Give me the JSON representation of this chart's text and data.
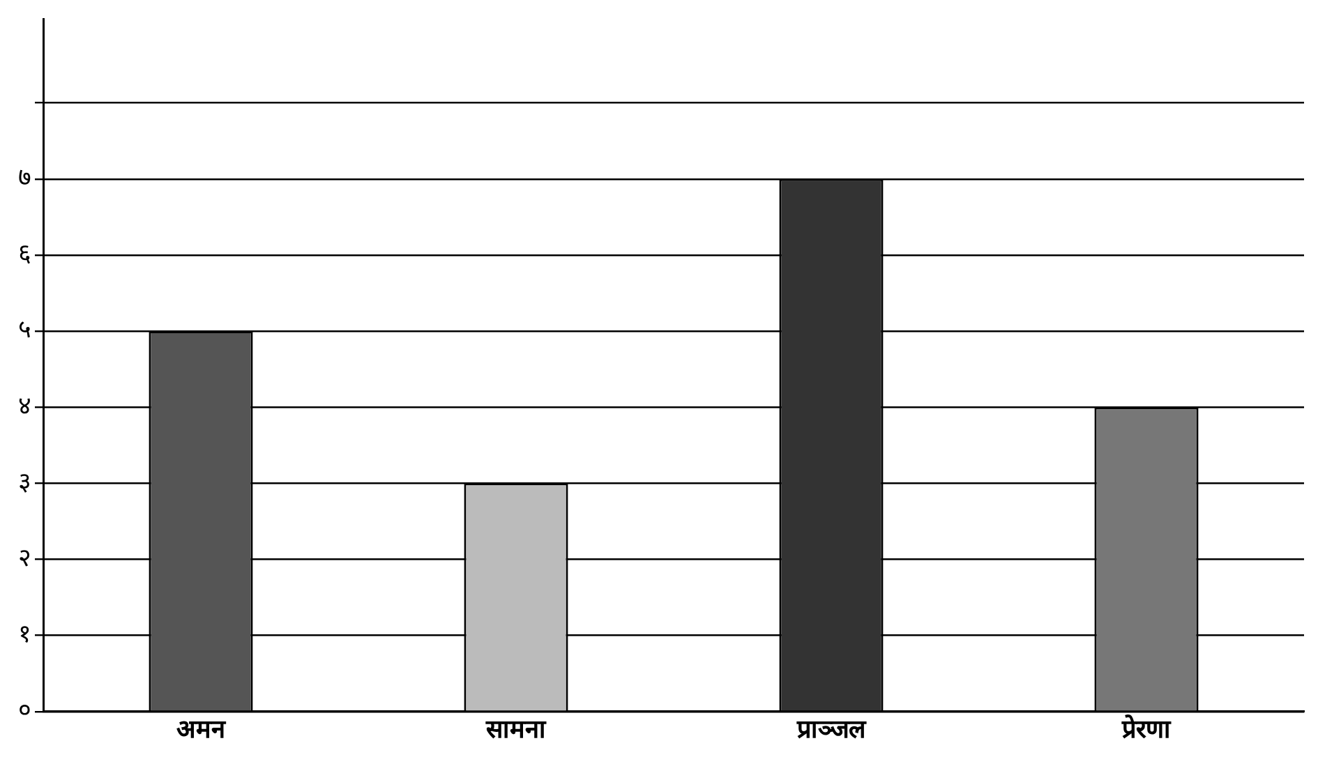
{
  "chart_data": {
    "type": "bar",
    "categories": [
      "अमन",
      "सामना",
      "प्राञ्जल",
      "प्रेरणा"
    ],
    "values": [
      5,
      3,
      7,
      4
    ],
    "colors": [
      "#555555",
      "#bbbbbb",
      "#333333",
      "#777777"
    ],
    "ylim": [
      0,
      9.1
    ],
    "yticks": [
      {
        "value": 0,
        "label": "०"
      },
      {
        "value": 1,
        "label": "१"
      },
      {
        "value": 2,
        "label": "२"
      },
      {
        "value": 3,
        "label": "३"
      },
      {
        "value": 4,
        "label": "४"
      },
      {
        "value": 5,
        "label": "५"
      },
      {
        "value": 6,
        "label": "६"
      },
      {
        "value": 7,
        "label": "७"
      },
      {
        "value": 8,
        "label": null
      }
    ],
    "grid": "y"
  }
}
